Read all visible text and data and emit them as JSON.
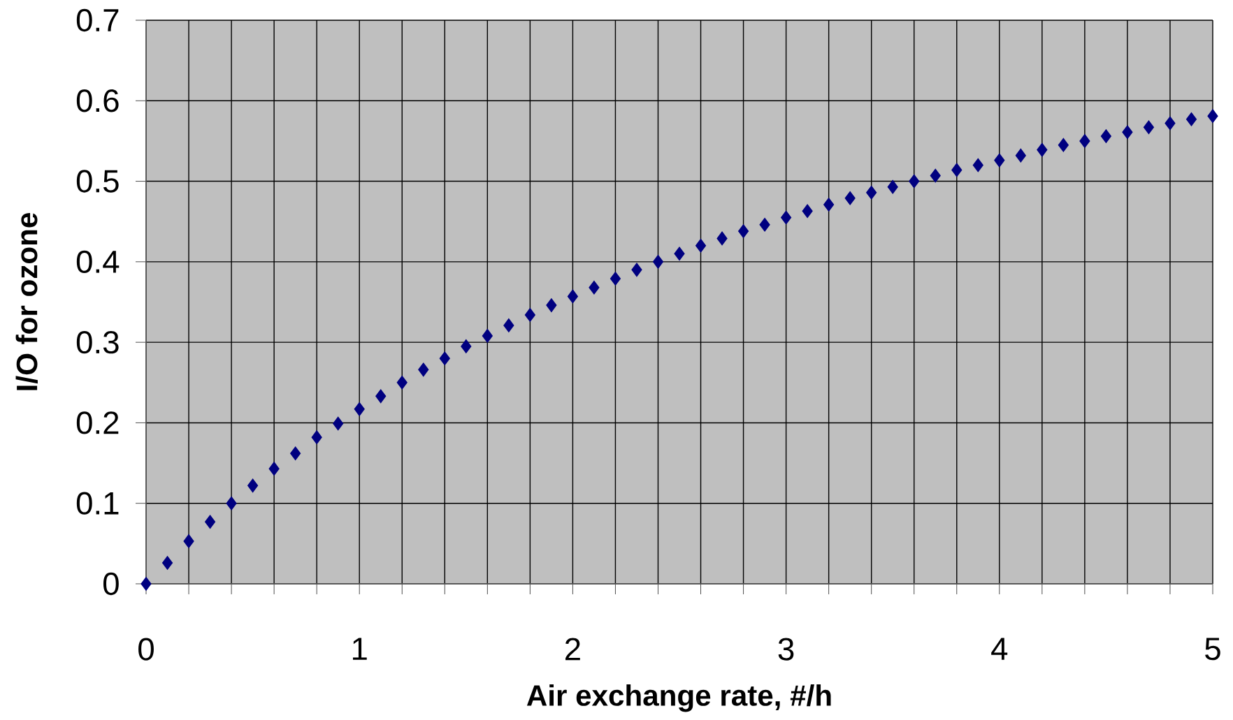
{
  "chart_data": {
    "type": "scatter",
    "xlabel": "Air exchange rate, #/h",
    "ylabel": "I/O for ozone",
    "x": [
      0,
      0.1,
      0.2,
      0.3,
      0.4,
      0.5,
      0.6,
      0.7,
      0.8,
      0.9,
      1.0,
      1.1,
      1.2,
      1.3,
      1.4,
      1.5,
      1.6,
      1.7,
      1.8,
      1.9,
      2.0,
      2.1,
      2.2,
      2.3,
      2.4,
      2.5,
      2.6,
      2.7,
      2.8,
      2.9,
      3.0,
      3.1,
      3.2,
      3.3,
      3.4,
      3.5,
      3.6,
      3.7,
      3.8,
      3.9,
      4.0,
      4.1,
      4.2,
      4.3,
      4.4,
      4.5,
      4.6,
      4.7,
      4.8,
      4.9,
      5.0
    ],
    "series": [
      {
        "color": "#000080",
        "values": [
          0,
          0.026,
          0.053,
          0.077,
          0.1,
          0.122,
          0.143,
          0.162,
          0.182,
          0.199,
          0.217,
          0.233,
          0.25,
          0.266,
          0.28,
          0.295,
          0.308,
          0.321,
          0.334,
          0.346,
          0.357,
          0.368,
          0.379,
          0.39,
          0.4,
          0.41,
          0.42,
          0.429,
          0.438,
          0.446,
          0.455,
          0.463,
          0.471,
          0.479,
          0.486,
          0.493,
          0.5,
          0.507,
          0.514,
          0.52,
          0.526,
          0.532,
          0.539,
          0.545,
          0.55,
          0.556,
          0.561,
          0.567,
          0.572,
          0.577,
          0.581
        ]
      }
    ],
    "xlim": [
      0,
      5
    ],
    "ylim": [
      0,
      0.7
    ],
    "xticks": [
      0,
      {
        "value": 0.2,
        "label": null
      },
      {
        "value": 0.4,
        "label": null
      },
      {
        "value": 0.6,
        "label": null
      },
      {
        "value": 0.8,
        "label": null
      },
      1,
      {
        "value": 1.2,
        "label": null
      },
      {
        "value": 1.4,
        "label": null
      },
      {
        "value": 1.6,
        "label": null
      },
      {
        "value": 1.8,
        "label": null
      },
      2,
      {
        "value": 2.2,
        "label": null
      },
      {
        "value": 2.4,
        "label": null
      },
      {
        "value": 2.6,
        "label": null
      },
      {
        "value": 2.8,
        "label": null
      },
      3,
      {
        "value": 3.2,
        "label": null
      },
      {
        "value": 3.4,
        "label": null
      },
      {
        "value": 3.6,
        "label": null
      },
      {
        "value": 3.8,
        "label": null
      },
      4,
      {
        "value": 4.2,
        "label": null
      },
      {
        "value": 4.4,
        "label": null
      },
      {
        "value": 4.6,
        "label": null
      },
      {
        "value": 4.8,
        "label": null
      },
      5
    ],
    "yticks": [
      0,
      0.1,
      0.2,
      0.3,
      0.4,
      0.5,
      0.6,
      0.7
    ],
    "grid": true,
    "marker": "diamond"
  }
}
